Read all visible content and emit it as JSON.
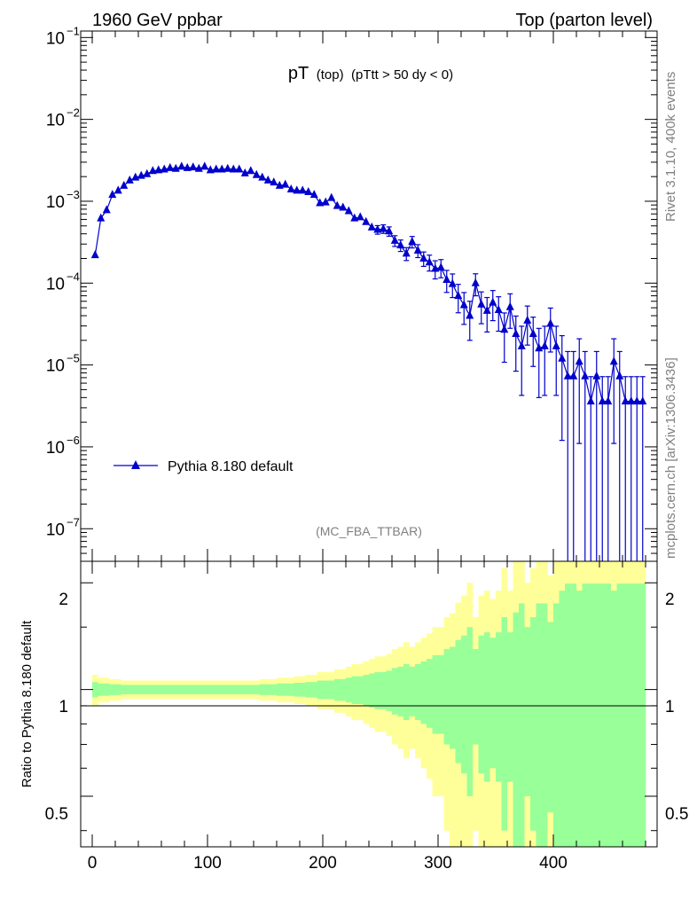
{
  "header": {
    "left": "1960 GeV ppbar",
    "right": "Top (parton level)"
  },
  "plot_title": {
    "main": "pT",
    "sub1": "(top)",
    "sub2": "(pTtt > 50 dy < 0)"
  },
  "side_text": {
    "rivet": "Rivet 3.1.10,  400k events",
    "mcplots": "mcplots.cern.ch [arXiv:1306.3436]"
  },
  "analysis_label": "(MC_FBA_TTBAR)",
  "legend": {
    "entry": "Pythia 8.180 default"
  },
  "ratio": {
    "ylabel": "Ratio to Pythia 8.180 default",
    "ytick_labels": [
      "0.5",
      "1",
      "2"
    ]
  },
  "colors": {
    "series": "#0000cc",
    "band_inner": "#99ff99",
    "band_outer": "#ffff99",
    "side_text": "#808080"
  },
  "chart_data": {
    "type": "line",
    "title": "pT (top) (pTtt > 50 dy < 0)",
    "xlabel": "",
    "ylabel": "",
    "xlim": [
      -10,
      490
    ],
    "ylim": [
      4e-08,
      0.12
    ],
    "yscale": "log",
    "x_ticks": [
      0,
      100,
      200,
      300,
      400
    ],
    "y_tick_exponents": [
      -7,
      -6,
      -5,
      -4,
      -3,
      -2,
      -1
    ],
    "series": [
      {
        "name": "Pythia 8.180 default",
        "marker": "triangle",
        "x": [
          2.5,
          7.5,
          12.5,
          17.5,
          22.5,
          27.5,
          32.5,
          37.5,
          42.5,
          47.5,
          52.5,
          57.5,
          62.5,
          67.5,
          72.5,
          77.5,
          82.5,
          87.5,
          92.5,
          97.5,
          102.5,
          107.5,
          112.5,
          117.5,
          122.5,
          127.5,
          132.5,
          137.5,
          142.5,
          147.5,
          152.5,
          157.5,
          162.5,
          167.5,
          172.5,
          177.5,
          182.5,
          187.5,
          192.5,
          197.5,
          202.5,
          207.5,
          212.5,
          217.5,
          222.5,
          227.5,
          232.5,
          237.5,
          242.5,
          247.5,
          252.5,
          257.5,
          262.5,
          267.5,
          272.5,
          277.5,
          282.5,
          287.5,
          292.5,
          297.5,
          302.5,
          307.5,
          312.5,
          317.5,
          322.5,
          327.5,
          332.5,
          337.5,
          342.5,
          347.5,
          352.5,
          357.5,
          362.5,
          367.5,
          372.5,
          377.5,
          382.5,
          387.5,
          392.5,
          397.5,
          402.5,
          407.5,
          412.5,
          417.5,
          422.5,
          427.5,
          432.5,
          437.5,
          442.5,
          447.5,
          452.5,
          457.5,
          462.5,
          467.5,
          472.5,
          477.5
        ],
        "y": [
          0.00022,
          0.00062,
          0.00078,
          0.0012,
          0.00135,
          0.00155,
          0.0018,
          0.00195,
          0.00205,
          0.00215,
          0.00235,
          0.0024,
          0.00245,
          0.00255,
          0.0025,
          0.00265,
          0.00255,
          0.0026,
          0.0025,
          0.00265,
          0.0024,
          0.00245,
          0.00245,
          0.0025,
          0.00245,
          0.00245,
          0.0022,
          0.00235,
          0.0021,
          0.00195,
          0.0018,
          0.0017,
          0.00155,
          0.0016,
          0.0014,
          0.00135,
          0.00135,
          0.0013,
          0.0012,
          0.00095,
          0.00097,
          0.0011,
          0.00088,
          0.00084,
          0.00076,
          0.00062,
          0.00064,
          0.00056,
          0.00048,
          0.00045,
          0.00046,
          0.00043,
          0.00033,
          0.00029,
          0.00023,
          0.00032,
          0.00025,
          0.0002,
          0.00018,
          0.00015,
          0.000155,
          0.00011,
          9.8e-05,
          7e-05,
          5.4e-05,
          4e-05,
          0.0001,
          5.5e-05,
          4.6e-05,
          5.8e-05,
          4.7e-05,
          2.7e-05,
          5.1e-05,
          2.4e-05,
          1.7e-05,
          3.5e-05,
          2.4e-05,
          1.6e-05,
          1.7e-05,
          3.2e-05,
          1.7e-05,
          1.2e-05,
          7.3e-06,
          7.3e-06,
          1.1e-05,
          7.3e-06,
          3.6e-06,
          7.3e-06,
          3.6e-06,
          3.6e-06,
          1.1e-05,
          7.3e-06,
          3.6e-06,
          3.6e-06,
          3.6e-06,
          3.6e-06
        ],
        "yerr_rel": [
          0.05,
          0.04,
          0.04,
          0.035,
          0.035,
          0.03,
          0.03,
          0.03,
          0.03,
          0.03,
          0.03,
          0.03,
          0.03,
          0.03,
          0.03,
          0.03,
          0.03,
          0.03,
          0.03,
          0.03,
          0.03,
          0.03,
          0.03,
          0.03,
          0.03,
          0.03,
          0.03,
          0.03,
          0.03,
          0.035,
          0.035,
          0.035,
          0.04,
          0.04,
          0.04,
          0.045,
          0.045,
          0.05,
          0.05,
          0.06,
          0.06,
          0.06,
          0.07,
          0.07,
          0.08,
          0.09,
          0.09,
          0.1,
          0.11,
          0.12,
          0.12,
          0.13,
          0.15,
          0.16,
          0.18,
          0.16,
          0.18,
          0.2,
          0.22,
          0.25,
          0.25,
          0.3,
          0.32,
          0.38,
          0.42,
          0.5,
          0.3,
          0.42,
          0.45,
          0.4,
          0.45,
          0.6,
          0.45,
          0.65,
          0.75,
          0.5,
          0.6,
          0.75,
          0.75,
          0.55,
          0.75,
          0.9,
          1.0,
          1.0,
          0.9,
          1.0,
          1.0,
          1.0,
          1.0,
          1.0,
          0.9,
          1.0,
          1.0,
          1.0,
          1.0,
          1.0
        ]
      }
    ]
  }
}
